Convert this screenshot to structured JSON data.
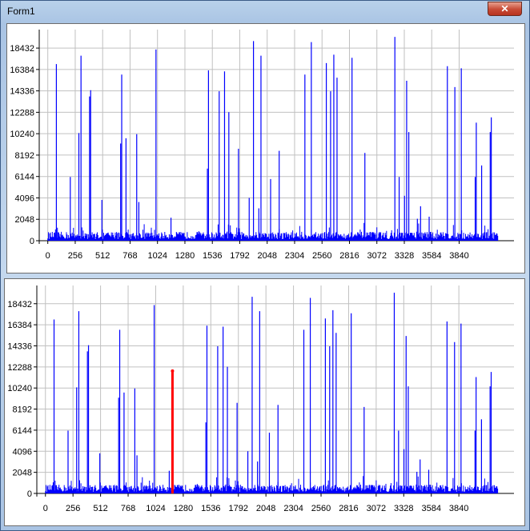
{
  "window": {
    "title": "Form1",
    "close_glyph": "✕"
  },
  "colors": {
    "series": "#0000ff",
    "cursor": "#ff0000",
    "grid": "#c0c0c0"
  },
  "chart_data": [
    {
      "type": "bar",
      "xlabel": "",
      "ylabel": "",
      "xlim": [
        -80,
        4352
      ],
      "ylim": [
        0,
        20200
      ],
      "xticks": [
        0,
        256,
        512,
        768,
        1024,
        1280,
        1536,
        1792,
        2048,
        2304,
        2560,
        2816,
        3072,
        3328,
        3584,
        3840
      ],
      "yticks": [
        0,
        2048,
        4096,
        6144,
        8192,
        10240,
        12288,
        14336,
        16384,
        18432
      ],
      "grid": true,
      "spikes": [
        {
          "x": 80,
          "y": 16900
        },
        {
          "x": 210,
          "y": 6100
        },
        {
          "x": 290,
          "y": 10300
        },
        {
          "x": 310,
          "y": 17700
        },
        {
          "x": 390,
          "y": 13800
        },
        {
          "x": 400,
          "y": 14400
        },
        {
          "x": 505,
          "y": 3900
        },
        {
          "x": 680,
          "y": 9300
        },
        {
          "x": 690,
          "y": 15900
        },
        {
          "x": 730,
          "y": 9800
        },
        {
          "x": 830,
          "y": 10200
        },
        {
          "x": 850,
          "y": 3700
        },
        {
          "x": 1010,
          "y": 18300
        },
        {
          "x": 1150,
          "y": 2200
        },
        {
          "x": 1490,
          "y": 6900
        },
        {
          "x": 1500,
          "y": 16300
        },
        {
          "x": 1600,
          "y": 14300
        },
        {
          "x": 1650,
          "y": 16200
        },
        {
          "x": 1690,
          "y": 12300
        },
        {
          "x": 1780,
          "y": 8800
        },
        {
          "x": 1880,
          "y": 4100
        },
        {
          "x": 1920,
          "y": 19100
        },
        {
          "x": 1970,
          "y": 3100
        },
        {
          "x": 1990,
          "y": 17700
        },
        {
          "x": 2080,
          "y": 5900
        },
        {
          "x": 2160,
          "y": 8600
        },
        {
          "x": 2400,
          "y": 15900
        },
        {
          "x": 2460,
          "y": 19000
        },
        {
          "x": 2600,
          "y": 17000
        },
        {
          "x": 2640,
          "y": 14300
        },
        {
          "x": 2670,
          "y": 17800
        },
        {
          "x": 2700,
          "y": 15600
        },
        {
          "x": 2840,
          "y": 17500
        },
        {
          "x": 2960,
          "y": 8400
        },
        {
          "x": 3240,
          "y": 19500
        },
        {
          "x": 3280,
          "y": 6100
        },
        {
          "x": 3330,
          "y": 4300
        },
        {
          "x": 3350,
          "y": 15300
        },
        {
          "x": 3370,
          "y": 10400
        },
        {
          "x": 3450,
          "y": 2100
        },
        {
          "x": 3480,
          "y": 3300
        },
        {
          "x": 3560,
          "y": 2300
        },
        {
          "x": 3730,
          "y": 16700
        },
        {
          "x": 3800,
          "y": 14700
        },
        {
          "x": 3860,
          "y": 16500
        },
        {
          "x": 3990,
          "y": 6100
        },
        {
          "x": 4000,
          "y": 11300
        },
        {
          "x": 4050,
          "y": 7200
        },
        {
          "x": 4130,
          "y": 10400
        },
        {
          "x": 4140,
          "y": 11800
        }
      ]
    },
    {
      "type": "bar",
      "xlabel": "",
      "ylabel": "",
      "xlim": [
        -80,
        4352
      ],
      "ylim": [
        0,
        20200
      ],
      "xticks": [
        0,
        256,
        512,
        768,
        1024,
        1280,
        1536,
        1792,
        2048,
        2304,
        2560,
        2816,
        3072,
        3328,
        3584,
        3840
      ],
      "yticks": [
        0,
        2048,
        4096,
        6144,
        8192,
        10240,
        12288,
        14336,
        16384,
        18432
      ],
      "grid": true,
      "cursor": {
        "x": 1180,
        "y": 11900
      },
      "spikes": [
        {
          "x": 80,
          "y": 16900
        },
        {
          "x": 210,
          "y": 6100
        },
        {
          "x": 290,
          "y": 10300
        },
        {
          "x": 310,
          "y": 17700
        },
        {
          "x": 390,
          "y": 13800
        },
        {
          "x": 400,
          "y": 14400
        },
        {
          "x": 505,
          "y": 3900
        },
        {
          "x": 680,
          "y": 9300
        },
        {
          "x": 690,
          "y": 15900
        },
        {
          "x": 730,
          "y": 9800
        },
        {
          "x": 830,
          "y": 10200
        },
        {
          "x": 850,
          "y": 3700
        },
        {
          "x": 1010,
          "y": 18300
        },
        {
          "x": 1150,
          "y": 2200
        },
        {
          "x": 1490,
          "y": 6900
        },
        {
          "x": 1500,
          "y": 16300
        },
        {
          "x": 1600,
          "y": 14300
        },
        {
          "x": 1650,
          "y": 16200
        },
        {
          "x": 1690,
          "y": 12300
        },
        {
          "x": 1780,
          "y": 8800
        },
        {
          "x": 1880,
          "y": 4100
        },
        {
          "x": 1920,
          "y": 19100
        },
        {
          "x": 1970,
          "y": 3100
        },
        {
          "x": 1990,
          "y": 17700
        },
        {
          "x": 2080,
          "y": 5900
        },
        {
          "x": 2160,
          "y": 8600
        },
        {
          "x": 2400,
          "y": 15900
        },
        {
          "x": 2460,
          "y": 19000
        },
        {
          "x": 2600,
          "y": 17000
        },
        {
          "x": 2640,
          "y": 14300
        },
        {
          "x": 2670,
          "y": 17800
        },
        {
          "x": 2700,
          "y": 15600
        },
        {
          "x": 2840,
          "y": 17500
        },
        {
          "x": 2960,
          "y": 8400
        },
        {
          "x": 3240,
          "y": 19500
        },
        {
          "x": 3280,
          "y": 6100
        },
        {
          "x": 3330,
          "y": 4300
        },
        {
          "x": 3350,
          "y": 15300
        },
        {
          "x": 3370,
          "y": 10400
        },
        {
          "x": 3450,
          "y": 2100
        },
        {
          "x": 3480,
          "y": 3300
        },
        {
          "x": 3560,
          "y": 2300
        },
        {
          "x": 3730,
          "y": 16700
        },
        {
          "x": 3800,
          "y": 14700
        },
        {
          "x": 3860,
          "y": 16500
        },
        {
          "x": 3990,
          "y": 6100
        },
        {
          "x": 4000,
          "y": 11300
        },
        {
          "x": 4050,
          "y": 7200
        },
        {
          "x": 4130,
          "y": 10400
        },
        {
          "x": 4140,
          "y": 11800
        }
      ]
    }
  ]
}
